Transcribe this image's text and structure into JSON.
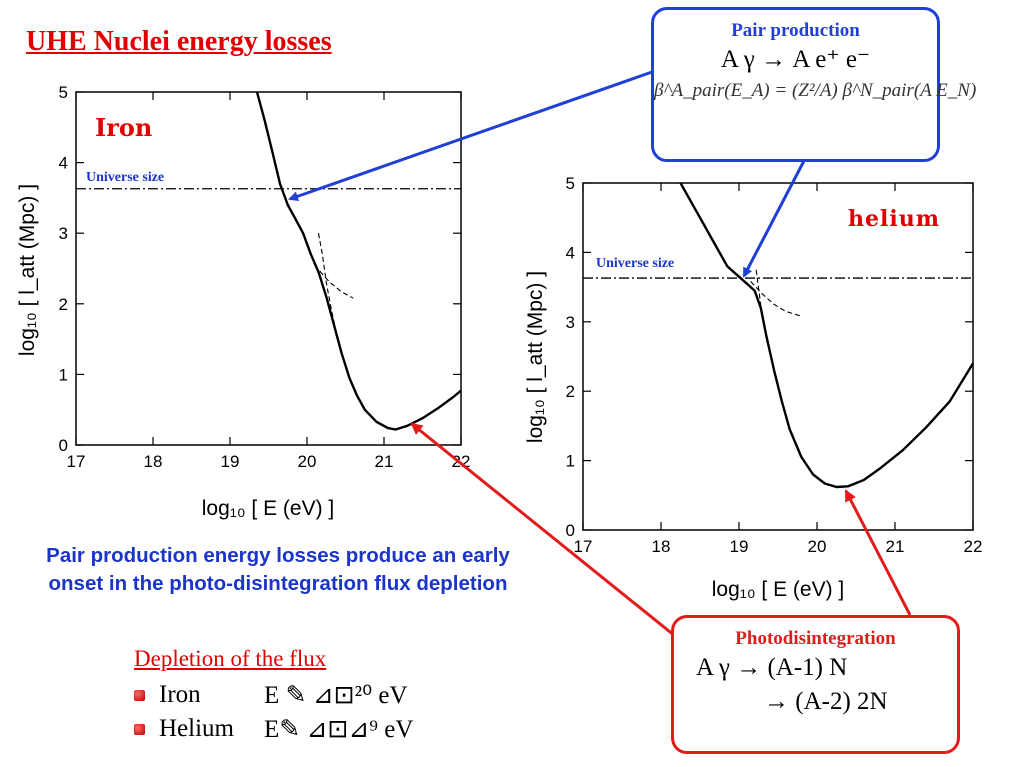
{
  "title": "UHE Nuclei energy losses",
  "pair_box": {
    "title": "Pair production",
    "reaction": "A  γ  →   A  e⁺ e⁻",
    "formula": "β^A_pair(E_A) = (Z²/A) β^N_pair(A E_N)"
  },
  "photo_box": {
    "title": "Photodisintegration",
    "line1": "A  γ  →  (A-1)  N",
    "line2": "→  (A-2)  2N"
  },
  "caption": "Pair production energy losses produce an early onset in the photo-disintegration flux depletion",
  "depletion": {
    "title": "Depletion of the flux",
    "items": [
      {
        "name": "Iron",
        "value": "E ✎      ⊿⊡²⁰ eV"
      },
      {
        "name": "Helium",
        "value": "E✎      ⊿⊡⊿⁹ eV"
      }
    ]
  },
  "colors": {
    "title": "#e00000",
    "blue": "#1f3fd6",
    "red": "#e21b1b",
    "caption": "#1a35c8"
  },
  "chart_data": [
    {
      "type": "line",
      "panel_label": "Iron",
      "xlabel": "log₁₀ [ E (eV) ]",
      "ylabel": "log₁₀ [ l_att  (Mpc) ]",
      "xlim": [
        17,
        22
      ],
      "ylim": [
        0,
        5
      ],
      "xticks": [
        "17",
        "18",
        "19",
        "20",
        "21",
        "22"
      ],
      "yticks": [
        "0",
        "1",
        "2",
        "3",
        "4",
        "5"
      ],
      "universe_label": "Universe  size",
      "universe_y": 3.63,
      "series": [
        {
          "style": "solid",
          "points": [
            [
              19.35,
              5
            ],
            [
              19.45,
              4.6
            ],
            [
              19.55,
              4.15
            ],
            [
              19.65,
              3.7
            ],
            [
              19.75,
              3.4
            ],
            [
              19.85,
              3.2
            ],
            [
              19.95,
              3.0
            ],
            [
              20.05,
              2.7
            ],
            [
              20.15,
              2.45
            ],
            [
              20.25,
              2.1
            ],
            [
              20.35,
              1.7
            ],
            [
              20.45,
              1.3
            ],
            [
              20.55,
              0.95
            ],
            [
              20.65,
              0.7
            ],
            [
              20.75,
              0.5
            ],
            [
              20.9,
              0.33
            ],
            [
              21.05,
              0.24
            ],
            [
              21.15,
              0.22
            ],
            [
              21.3,
              0.27
            ],
            [
              21.5,
              0.38
            ],
            [
              21.7,
              0.52
            ],
            [
              21.9,
              0.68
            ],
            [
              22,
              0.77
            ]
          ]
        },
        {
          "style": "dashed",
          "points": [
            [
              20.15,
              3.0
            ],
            [
              20.2,
              2.7
            ],
            [
              20.25,
              2.3
            ],
            [
              20.32,
              1.9
            ],
            [
              20.4,
              1.5
            ]
          ]
        },
        {
          "style": "dashed",
          "points": [
            [
              20.1,
              2.55
            ],
            [
              20.2,
              2.42
            ],
            [
              20.3,
              2.3
            ],
            [
              20.45,
              2.17
            ],
            [
              20.6,
              2.08
            ]
          ]
        }
      ]
    },
    {
      "type": "line",
      "panel_label": "helium",
      "xlabel": "log₁₀ [ E (eV) ]",
      "ylabel": "log₁₀ [ l_att  (Mpc) ]",
      "xlim": [
        17,
        22
      ],
      "ylim": [
        0,
        5
      ],
      "xticks": [
        "17",
        "18",
        "19",
        "20",
        "21",
        "22"
      ],
      "yticks": [
        "0",
        "1",
        "2",
        "3",
        "4",
        "5"
      ],
      "universe_label": "Universe  size",
      "universe_y": 3.63,
      "series": [
        {
          "style": "solid",
          "points": [
            [
              18.25,
              5
            ],
            [
              18.4,
              4.7
            ],
            [
              18.55,
              4.4
            ],
            [
              18.7,
              4.1
            ],
            [
              18.85,
              3.8
            ],
            [
              19.0,
              3.65
            ],
            [
              19.1,
              3.55
            ],
            [
              19.2,
              3.45
            ],
            [
              19.28,
              3.2
            ],
            [
              19.35,
              2.8
            ],
            [
              19.45,
              2.3
            ],
            [
              19.55,
              1.85
            ],
            [
              19.65,
              1.45
            ],
            [
              19.8,
              1.05
            ],
            [
              19.95,
              0.8
            ],
            [
              20.1,
              0.67
            ],
            [
              20.25,
              0.62
            ],
            [
              20.4,
              0.63
            ],
            [
              20.6,
              0.72
            ],
            [
              20.8,
              0.88
            ],
            [
              21.1,
              1.15
            ],
            [
              21.4,
              1.48
            ],
            [
              21.7,
              1.85
            ],
            [
              22,
              2.4
            ]
          ]
        },
        {
          "style": "dashed",
          "points": [
            [
              19.22,
              3.75
            ],
            [
              19.26,
              3.4
            ],
            [
              19.3,
              3.05
            ],
            [
              19.36,
              2.7
            ]
          ]
        },
        {
          "style": "dashed",
          "points": [
            [
              19.15,
              3.58
            ],
            [
              19.3,
              3.4
            ],
            [
              19.45,
              3.25
            ],
            [
              19.6,
              3.15
            ],
            [
              19.8,
              3.08
            ]
          ]
        }
      ]
    }
  ]
}
